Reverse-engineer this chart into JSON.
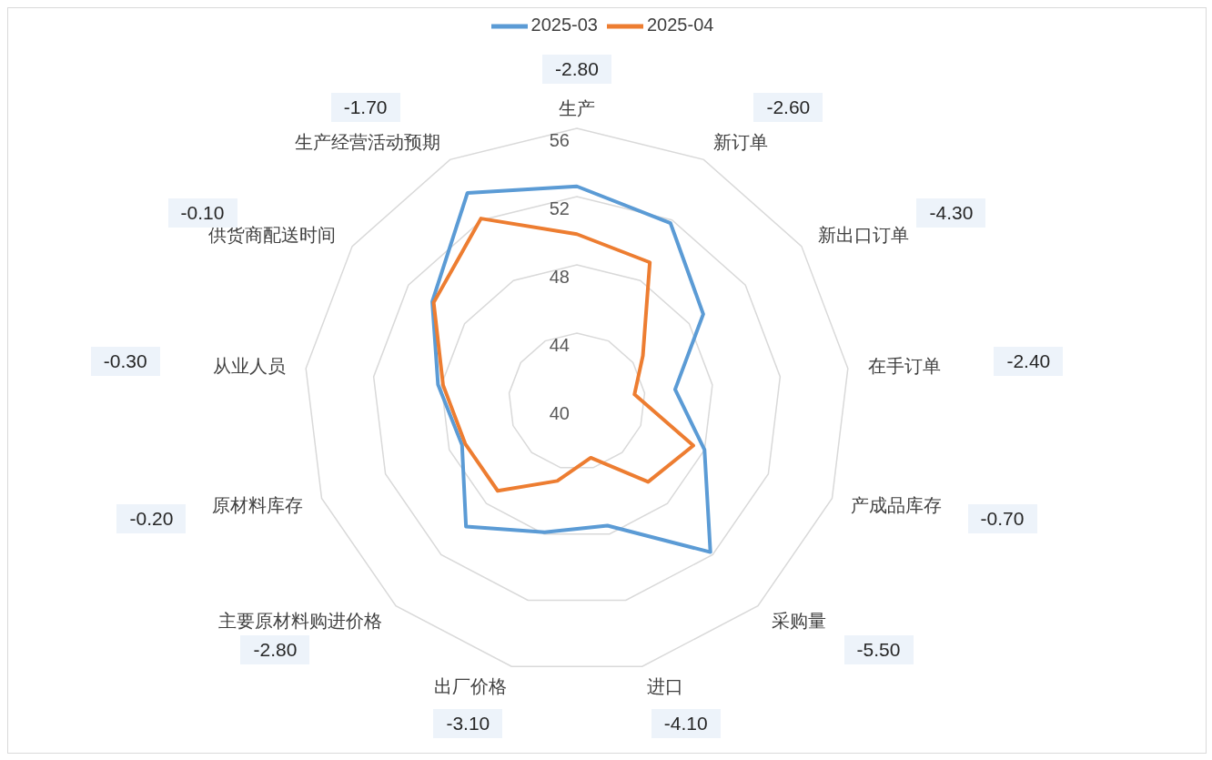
{
  "chart_data": {
    "type": "radar",
    "categories": [
      "生产",
      "新订单",
      "新出口订单",
      "在手订单",
      "产成品库存",
      "采购量",
      "进口",
      "出厂价格",
      "主要原材料购进价格",
      "原材料库存",
      "从业人员",
      "供货商配送时间",
      "生产经营活动预期"
    ],
    "series": [
      {
        "name": "2025-03",
        "color": "#5b9bd5",
        "values": [
          52.6,
          51.8,
          49.0,
          45.8,
          48.0,
          51.8,
          47.5,
          47.9,
          49.8,
          47.2,
          48.2,
          50.3,
          53.8
        ]
      },
      {
        "name": "2025-04",
        "color": "#ed7d31",
        "values": [
          49.8,
          49.2,
          44.7,
          43.4,
          47.3,
          46.3,
          43.4,
          44.8,
          47.0,
          47.0,
          47.9,
          50.2,
          52.1
        ]
      }
    ],
    "ylim": [
      40,
      56
    ],
    "yticks": [
      40,
      44,
      48,
      52,
      56
    ],
    "grid": true,
    "legend": "top",
    "marker": "none",
    "line_style": "solid",
    "annotations": [
      "-2.80",
      "-2.60",
      "-4.30",
      "-2.40",
      "-0.70",
      "-5.50",
      "-4.10",
      "-3.10",
      "-2.80",
      "-0.20",
      "-0.30",
      "-0.10",
      "-1.70"
    ]
  }
}
